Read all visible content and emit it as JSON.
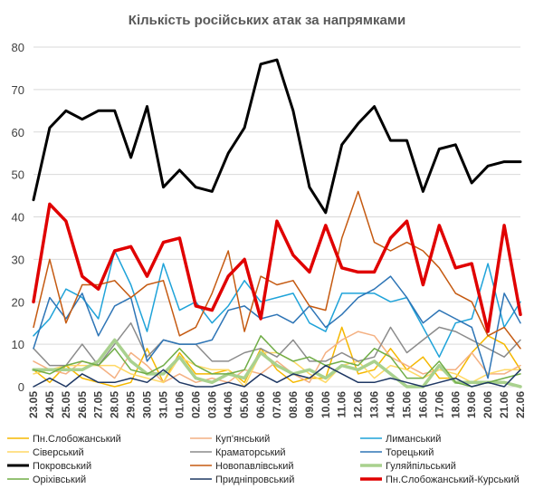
{
  "chart_data": {
    "type": "line",
    "title": "Кількість російських атак за напрямками",
    "xlabel": "",
    "ylabel": "",
    "ylim": [
      0,
      80
    ],
    "yticks": [
      "0",
      "10",
      "20",
      "30",
      "40",
      "50",
      "60",
      "70",
      "80"
    ],
    "grid": true,
    "legend_position": "bottom",
    "x": [
      "23.05",
      "24.05",
      "25.05",
      "26.05",
      "27.05",
      "28.05",
      "29.05",
      "30.05",
      "31.05",
      "01.06",
      "02.06",
      "03.06",
      "04.06",
      "05.06",
      "06.06",
      "07.06",
      "08.06",
      "09.06",
      "10.06",
      "11.06",
      "12.06",
      "13.06",
      "14.06",
      "15.06",
      "16.06",
      "17.06",
      "18.06",
      "19.06",
      "20.06",
      "21.06",
      "22.06"
    ],
    "series": [
      {
        "name": "Пн.Слобожанський",
        "color": "#f5b800",
        "width": 1.5,
        "values": [
          4,
          1,
          5,
          2,
          1,
          0,
          1,
          9,
          1,
          8,
          3,
          3,
          4,
          1,
          9,
          4,
          1,
          2,
          2,
          14,
          3,
          4,
          9,
          4,
          7,
          2,
          2,
          8,
          12,
          10,
          4
        ]
      },
      {
        "name": "Куп'янський",
        "color": "#f4b183",
        "width": 1.5,
        "values": [
          6,
          4,
          3,
          6,
          5,
          2,
          8,
          5,
          1,
          3,
          1,
          2,
          1,
          4,
          3,
          6,
          3,
          1,
          8,
          11,
          13,
          12,
          7,
          5,
          3,
          4,
          4,
          8,
          3,
          3,
          5
        ]
      },
      {
        "name": "Лиманський",
        "color": "#1fa3d9",
        "width": 1.5,
        "values": [
          12,
          16,
          23,
          21,
          16,
          32,
          24,
          13,
          29,
          18,
          20,
          15,
          19,
          25,
          20,
          21,
          22,
          15,
          13,
          22,
          22,
          22,
          20,
          21,
          14,
          7,
          15,
          16,
          29,
          14,
          20
        ]
      },
      {
        "name": "Сіверський",
        "color": "#ffd966",
        "width": 1.5,
        "values": [
          3,
          4,
          5,
          5,
          5,
          5,
          3,
          2,
          1,
          7,
          5,
          4,
          4,
          0,
          8,
          8,
          6,
          3,
          1,
          5,
          6,
          2,
          5,
          4,
          2,
          4,
          3,
          1,
          3,
          4,
          4
        ]
      },
      {
        "name": "Краматорський",
        "color": "#8c8c8c",
        "width": 1.5,
        "values": [
          9,
          5,
          5,
          10,
          5,
          10,
          15,
          7,
          11,
          10,
          10,
          6,
          6,
          8,
          9,
          7,
          11,
          6,
          6,
          8,
          6,
          7,
          14,
          8,
          11,
          14,
          13,
          11,
          9,
          7,
          11
        ]
      },
      {
        "name": "Торецький",
        "color": "#2e75b6",
        "width": 1.5,
        "values": [
          9,
          21,
          16,
          22,
          12,
          19,
          21,
          6,
          11,
          10,
          10,
          11,
          18,
          19,
          16,
          17,
          15,
          19,
          14,
          17,
          21,
          23,
          26,
          21,
          15,
          18,
          16,
          14,
          2,
          22,
          15
        ]
      },
      {
        "name": "Покровський",
        "color": "#000000",
        "width": 3,
        "values": [
          44,
          61,
          65,
          63,
          65,
          65,
          54,
          66,
          47,
          51,
          47,
          46,
          55,
          61,
          76,
          77,
          65,
          47,
          41,
          57,
          62,
          66,
          58,
          58,
          46,
          56,
          57,
          48,
          52,
          53,
          53
        ]
      },
      {
        "name": "Новопавлівський",
        "color": "#c55a11",
        "width": 1.5,
        "values": [
          14,
          30,
          15,
          24,
          24,
          25,
          21,
          24,
          25,
          12,
          14,
          22,
          32,
          13,
          26,
          24,
          25,
          19,
          18,
          35,
          46,
          34,
          32,
          34,
          32,
          28,
          22,
          20,
          12,
          14,
          9
        ]
      },
      {
        "name": "Гуляйпільський",
        "color": "#a9d18e",
        "width": 3.5,
        "values": [
          4,
          4,
          4,
          4,
          6,
          11,
          6,
          3,
          3,
          7,
          2,
          1,
          3,
          2,
          8,
          5,
          3,
          4,
          2,
          5,
          4,
          6,
          3,
          0,
          0,
          5,
          1,
          1,
          1,
          1,
          0
        ]
      },
      {
        "name": "Оріхівський",
        "color": "#70ad47",
        "width": 1.5,
        "values": [
          4,
          3,
          5,
          6,
          5,
          9,
          4,
          3,
          5,
          9,
          5,
          3,
          3,
          4,
          12,
          8,
          6,
          7,
          5,
          6,
          5,
          9,
          7,
          2,
          2,
          6,
          1,
          0,
          1,
          2,
          3
        ]
      },
      {
        "name": "Придніпровський",
        "color": "#1f3864",
        "width": 1.5,
        "values": [
          0,
          2,
          0,
          3,
          1,
          1,
          2,
          1,
          4,
          1,
          0,
          0,
          1,
          0,
          3,
          1,
          3,
          2,
          5,
          3,
          1,
          1,
          2,
          1,
          0,
          1,
          2,
          0,
          1,
          0,
          4
        ]
      },
      {
        "name": "Пн.Слобожанський-Курський",
        "color": "#e00000",
        "width": 3.5,
        "values": [
          20,
          43,
          39,
          26,
          23,
          32,
          33,
          26,
          34,
          35,
          19,
          18,
          26,
          30,
          16,
          39,
          31,
          27,
          38,
          28,
          27,
          27,
          35,
          39,
          24,
          38,
          28,
          29,
          13,
          38,
          17
        ]
      }
    ]
  }
}
